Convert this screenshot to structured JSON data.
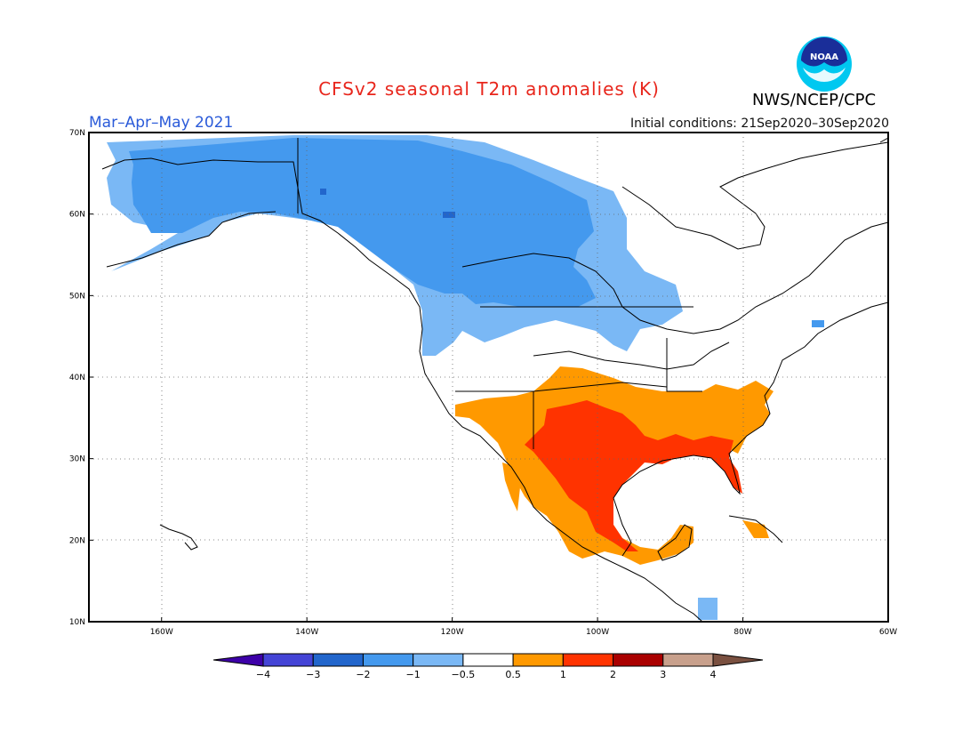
{
  "title": "CFSv2 seasonal T2m anomalies (K)",
  "season": "Mar–Apr–May 2021",
  "initial_conditions": "Initial conditions: 21Sep2020–30Sep2020",
  "agency": "NWS/NCEP/CPC",
  "logo_text": "NOAA",
  "axes": {
    "lat_labels": [
      "70N",
      "60N",
      "50N",
      "40N",
      "30N",
      "20N",
      "10N"
    ],
    "lat_values": [
      70,
      60,
      50,
      40,
      30,
      20,
      10
    ],
    "lon_labels": [
      "160W",
      "140W",
      "120W",
      "100W",
      "80W",
      "60W"
    ],
    "lon_values": [
      -160,
      -140,
      -120,
      -100,
      -80,
      -60
    ],
    "lon_range": [
      -170,
      -60
    ],
    "lat_range": [
      10,
      70
    ]
  },
  "colorbar": {
    "labels": [
      "−4",
      "−3",
      "−2",
      "−1",
      "−0.5",
      "0.5",
      "1",
      "2",
      "3",
      "4"
    ],
    "colors": [
      "#3d00a8",
      "#4444d6",
      "#2266cc",
      "#4499ee",
      "#7ab8f5",
      "#ffffff",
      "#ff9900",
      "#ff3300",
      "#aa0000",
      "#c8a08c",
      "#7a5040"
    ]
  },
  "colors": {
    "cool_light": "#7ab8f5",
    "cool_mid": "#4499ee",
    "cool_dark": "#2266cc",
    "warm_light": "#ff9900",
    "warm_mid": "#ff3300",
    "title_red": "#e8261c",
    "season_blue": "#2b5bd9"
  }
}
